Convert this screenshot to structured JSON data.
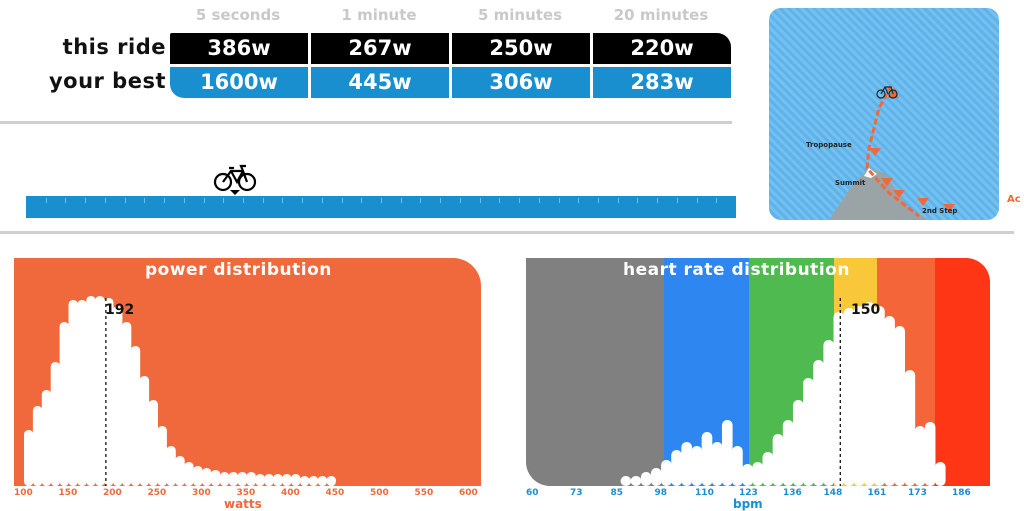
{
  "power_curve": {
    "durations": [
      "5 seconds",
      "1 minute",
      "5 minutes",
      "20 minutes"
    ],
    "this_ride_label": "this ride",
    "your_best_label": "your best",
    "this_ride": [
      "386w",
      "267w",
      "250w",
      "220w"
    ],
    "your_best": [
      "1600w",
      "445w",
      "306w",
      "283w"
    ]
  },
  "ride_progress": {
    "progress": 0.295
  },
  "route_map": {
    "labels": [
      "Tropopause",
      "Summit",
      "2nd Step"
    ],
    "edge_text": "Ac"
  },
  "colors": {
    "ride_bg": "#000000",
    "best_bg": "#1a8fcf",
    "power_panel": "#f0693c",
    "hr_zones": [
      "#808080",
      "#2e86f0",
      "#4fba4f",
      "#f8c83a",
      "#f4663a",
      "#ff3615"
    ]
  },
  "power_distribution": {
    "title": "power distribution",
    "marker_value": "192",
    "x_ticks": [
      "100",
      "150",
      "200",
      "250",
      "300",
      "350",
      "400",
      "450",
      "500",
      "550",
      "600"
    ],
    "x_label": "watts",
    "bins": [
      100,
      110,
      120,
      130,
      140,
      150,
      160,
      170,
      180,
      190,
      200,
      210,
      220,
      230,
      240,
      250,
      260,
      270,
      280,
      290,
      300,
      310,
      320,
      330,
      340,
      350,
      360,
      370,
      380,
      390,
      400,
      410,
      420,
      430,
      440
    ],
    "levels": [
      0.28,
      0.4,
      0.48,
      0.62,
      0.82,
      0.93,
      0.93,
      0.95,
      0.95,
      0.94,
      0.9,
      0.82,
      0.7,
      0.55,
      0.43,
      0.3,
      0.2,
      0.15,
      0.12,
      0.1,
      0.09,
      0.08,
      0.07,
      0.07,
      0.07,
      0.07,
      0.06,
      0.06,
      0.06,
      0.06,
      0.06,
      0.05,
      0.05,
      0.05,
      0.05
    ]
  },
  "heart_rate_distribution": {
    "title": "heart rate distribution",
    "marker_value": "150",
    "x_ticks": [
      "60",
      "73",
      "85",
      "98",
      "110",
      "123",
      "136",
      "148",
      "161",
      "173",
      "186"
    ],
    "x_label": "bpm",
    "bins": [
      85,
      88,
      91,
      94,
      97,
      100,
      103,
      106,
      109,
      112,
      115,
      118,
      121,
      124,
      127,
      130,
      133,
      136,
      139,
      142,
      145,
      148,
      151,
      154,
      157,
      160,
      163,
      166,
      169,
      172,
      175,
      178
    ],
    "levels": [
      0.05,
      0.05,
      0.07,
      0.09,
      0.13,
      0.18,
      0.22,
      0.2,
      0.27,
      0.22,
      0.33,
      0.2,
      0.11,
      0.12,
      0.17,
      0.26,
      0.33,
      0.43,
      0.54,
      0.63,
      0.73,
      0.87,
      0.89,
      0.9,
      0.92,
      0.9,
      0.85,
      0.8,
      0.58,
      0.3,
      0.32,
      0.12
    ]
  }
}
